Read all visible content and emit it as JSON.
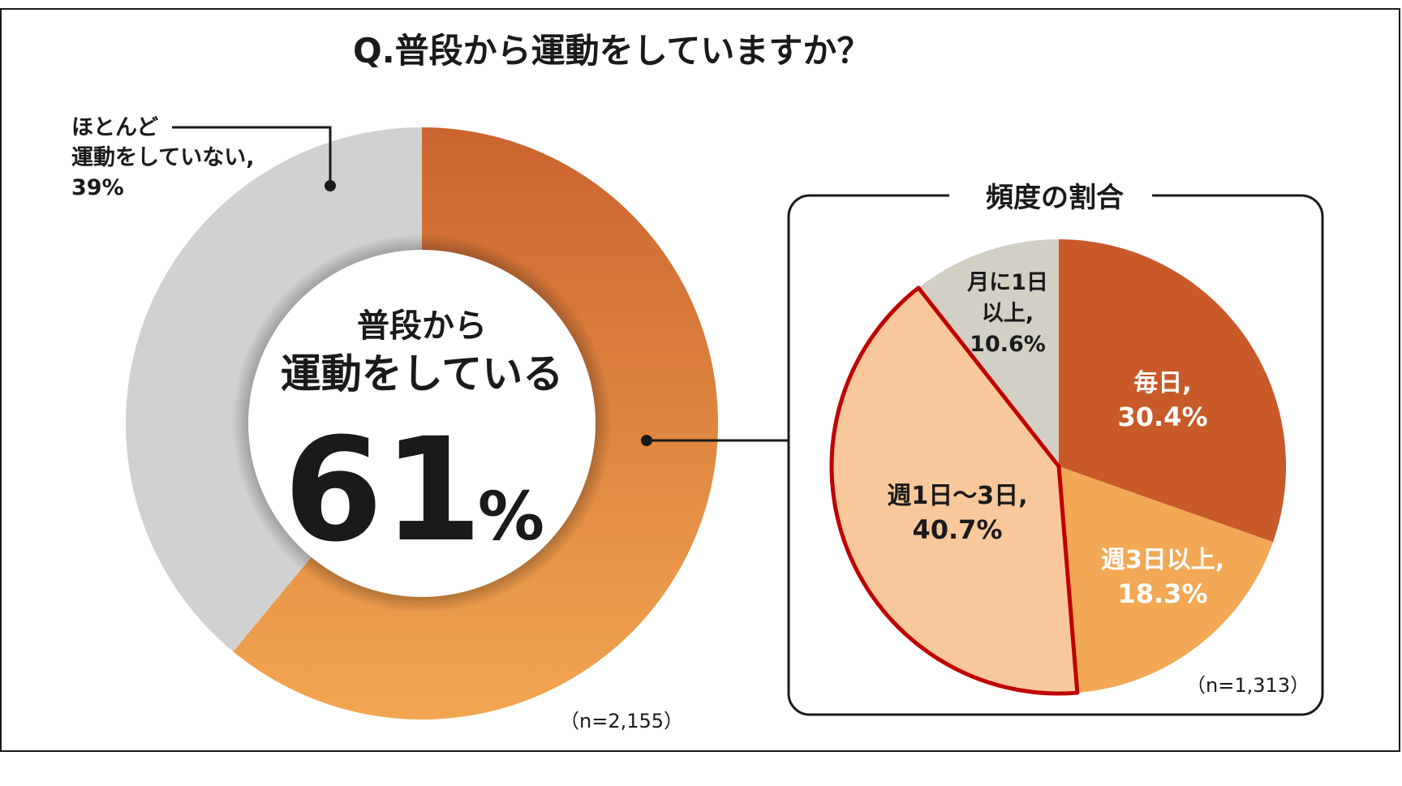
{
  "title": "Q.普段から運動をしていますか？",
  "main_chart": {
    "center_line1": "普段から",
    "center_line2": "運動をしている",
    "center_value": "61",
    "center_unit": "%",
    "callout_line1": "ほとんど",
    "callout_line2": "運動をしていない,",
    "callout_line3": "39%",
    "n_label": "（n=2,155）"
  },
  "sub_chart": {
    "title": "頻度の割合",
    "n_label": "（n=1,313）",
    "labels": {
      "daily_1": "毎日,",
      "daily_2": "30.4%",
      "w3_1": "週3日以上,",
      "w3_2": "18.3%",
      "w13_1": "週1日～3日,",
      "w13_2": "40.7%",
      "m1_1": "月に1日",
      "m1_2": "以上,",
      "m1_3": "10.6%"
    }
  },
  "chart_data": [
    {
      "type": "pie",
      "title": "Q.普段から運動をしていますか？",
      "categories": [
        "普段から運動をしている",
        "ほとんど運動をしていない"
      ],
      "values": [
        61,
        39
      ],
      "colors": [
        "#DC7A38",
        "#D2D1D1"
      ],
      "n": "n=2,155"
    },
    {
      "type": "pie",
      "title": "頻度の割合",
      "categories": [
        "毎日",
        "週3日以上",
        "週1日～3日",
        "月に1日以上"
      ],
      "values": [
        30.4,
        18.3,
        40.7,
        10.6
      ],
      "colors": [
        "#C85A2A",
        "#F2A855",
        "#F8C89A",
        "#D2CFC4"
      ],
      "n": "n=1,313"
    }
  ]
}
